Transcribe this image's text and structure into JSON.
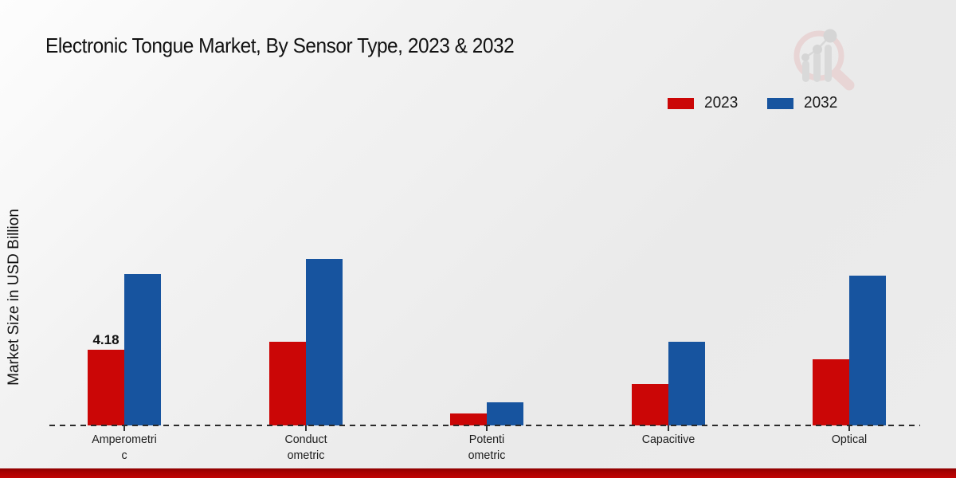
{
  "chart_data": {
    "type": "bar",
    "title": "Electronic Tongue Market, By Sensor Type, 2023 & 2032",
    "xlabel": "",
    "ylabel": "Market Size in USD Billion",
    "categories": [
      "Amperometric",
      "Conductometric",
      "Potentiometric",
      "Capacitive",
      "Optical"
    ],
    "category_label_lines": [
      [
        "Amperometri",
        "c"
      ],
      [
        "Conduct",
        "ometric"
      ],
      [
        "Potenti",
        "ometric"
      ],
      [
        "Capacitive"
      ],
      [
        "Optical"
      ]
    ],
    "series": [
      {
        "name": "2023",
        "color": "#cb0606",
        "values": [
          4.18,
          4.6,
          0.66,
          2.28,
          3.62
        ],
        "value_labels": [
          "4.18",
          "",
          "",
          "",
          ""
        ]
      },
      {
        "name": "2032",
        "color": "#17549f",
        "values": [
          8.33,
          9.15,
          1.28,
          4.62,
          8.22
        ]
      }
    ],
    "legend_position": "top-right",
    "grid": false,
    "baseline_value": 0,
    "only_labeled_value_shown": "4.18",
    "axis_line_style": "dashed",
    "footer_accent_color": "#b00000"
  }
}
